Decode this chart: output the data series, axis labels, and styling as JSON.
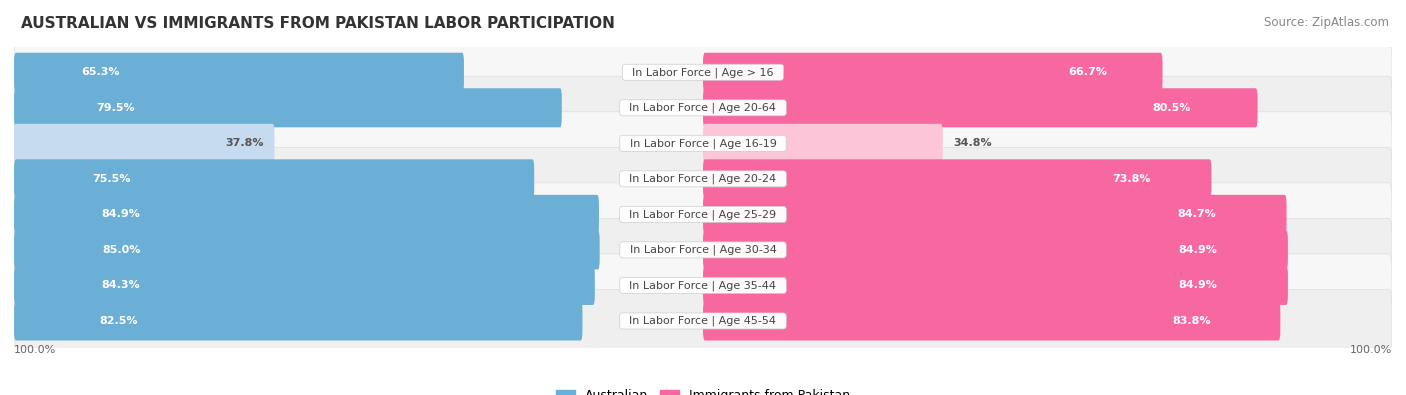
{
  "title": "AUSTRALIAN VS IMMIGRANTS FROM PAKISTAN LABOR PARTICIPATION",
  "source": "Source: ZipAtlas.com",
  "categories": [
    "In Labor Force | Age > 16",
    "In Labor Force | Age 20-64",
    "In Labor Force | Age 16-19",
    "In Labor Force | Age 20-24",
    "In Labor Force | Age 25-29",
    "In Labor Force | Age 30-34",
    "In Labor Force | Age 35-44",
    "In Labor Force | Age 45-54"
  ],
  "australian_values": [
    65.3,
    79.5,
    37.8,
    75.5,
    84.9,
    85.0,
    84.3,
    82.5
  ],
  "pakistan_values": [
    66.7,
    80.5,
    34.8,
    73.8,
    84.7,
    84.9,
    84.9,
    83.8
  ],
  "australian_color": "#6baed6",
  "pakistan_color": "#f768a1",
  "australian_color_light": "#c6dbef",
  "pakistan_color_light": "#fcc5d8",
  "row_bg_even": "#f7f7f7",
  "row_bg_odd": "#efefef",
  "title_fontsize": 11,
  "source_fontsize": 8.5,
  "label_fontsize": 8,
  "value_fontsize": 8,
  "legend_fontsize": 9,
  "axis_label_fontsize": 8,
  "legend_labels": [
    "Australian",
    "Immigrants from Pakistan"
  ],
  "left_axis_label": "100.0%",
  "right_axis_label": "100.0%"
}
